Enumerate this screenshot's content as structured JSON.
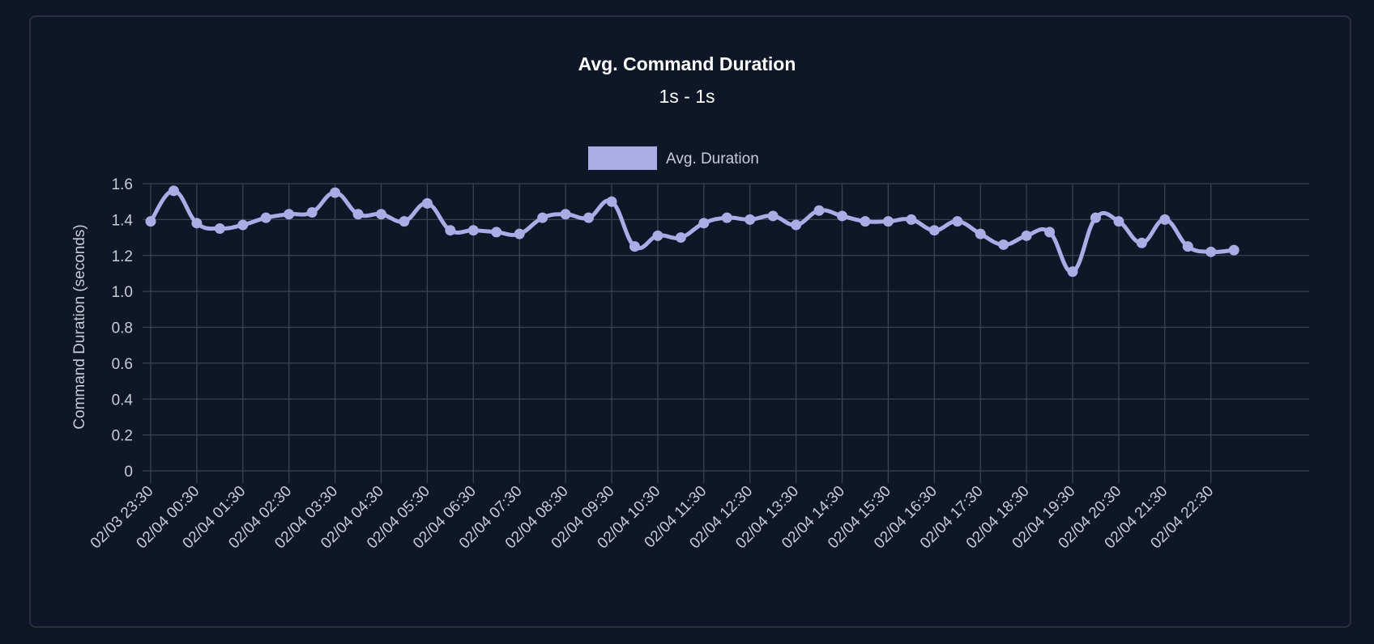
{
  "chart_data": {
    "type": "line",
    "title": "Avg. Command Duration",
    "subtitle": "1s - 1s",
    "ylabel": "Command Duration (seconds)",
    "xlabel": "",
    "ylim": [
      0,
      1.6
    ],
    "yticks": [
      "0",
      "0.2",
      "0.4",
      "0.6",
      "0.8",
      "1.0",
      "1.2",
      "1.4",
      "1.6"
    ],
    "grid": true,
    "legend_position": "top",
    "x_tick_labels": [
      "02/03 23:30",
      "02/04 00:30",
      "02/04 01:30",
      "02/04 02:30",
      "02/04 03:30",
      "02/04 04:30",
      "02/04 05:30",
      "02/04 06:30",
      "02/04 07:30",
      "02/04 08:30",
      "02/04 09:30",
      "02/04 10:30",
      "02/04 11:30",
      "02/04 12:30",
      "02/04 13:30",
      "02/04 14:30",
      "02/04 15:30",
      "02/04 16:30",
      "02/04 17:30",
      "02/04 18:30",
      "02/04 19:30",
      "02/04 20:30",
      "02/04 21:30",
      "02/04 22:30"
    ],
    "x": [
      "02/03 23:30",
      "02/04 00:00",
      "02/04 00:30",
      "02/04 01:00",
      "02/04 01:30",
      "02/04 02:00",
      "02/04 02:30",
      "02/04 03:00",
      "02/04 03:30",
      "02/04 04:00",
      "02/04 04:30",
      "02/04 05:00",
      "02/04 05:30",
      "02/04 06:00",
      "02/04 06:30",
      "02/04 07:00",
      "02/04 07:30",
      "02/04 08:00",
      "02/04 08:30",
      "02/04 09:00",
      "02/04 09:30",
      "02/04 10:00",
      "02/04 10:30",
      "02/04 11:00",
      "02/04 11:30",
      "02/04 12:00",
      "02/04 12:30",
      "02/04 13:00",
      "02/04 13:30",
      "02/04 14:00",
      "02/04 14:30",
      "02/04 15:00",
      "02/04 15:30",
      "02/04 16:00",
      "02/04 16:30",
      "02/04 17:00",
      "02/04 17:30",
      "02/04 18:00",
      "02/04 18:30",
      "02/04 19:00",
      "02/04 19:30",
      "02/04 20:00",
      "02/04 20:30",
      "02/04 21:00",
      "02/04 21:30",
      "02/04 22:00",
      "02/04 22:30",
      "02/04 23:00"
    ],
    "series": [
      {
        "name": "Avg. Duration",
        "color": "#aaace6",
        "values": [
          1.39,
          1.56,
          1.38,
          1.35,
          1.37,
          1.41,
          1.43,
          1.44,
          1.55,
          1.43,
          1.43,
          1.39,
          1.49,
          1.34,
          1.34,
          1.33,
          1.32,
          1.41,
          1.43,
          1.41,
          1.5,
          1.25,
          1.31,
          1.3,
          1.38,
          1.41,
          1.4,
          1.42,
          1.37,
          1.45,
          1.42,
          1.39,
          1.39,
          1.4,
          1.34,
          1.39,
          1.32,
          1.26,
          1.31,
          1.33,
          1.11,
          1.41,
          1.39,
          1.27,
          1.4,
          1.25,
          1.22,
          1.23
        ]
      }
    ]
  },
  "colors": {
    "background": "#0e1628",
    "grid": "#3b4252",
    "text": "#c7ccd6",
    "title": "#ffffff"
  }
}
